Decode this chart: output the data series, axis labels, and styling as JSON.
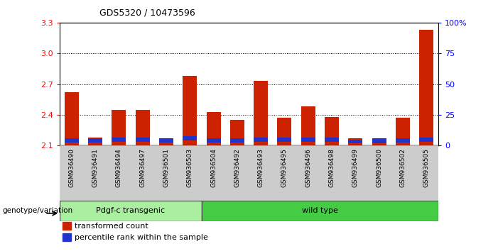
{
  "title": "GDS5320 / 10473596",
  "samples": [
    "GSM936490",
    "GSM936491",
    "GSM936494",
    "GSM936497",
    "GSM936501",
    "GSM936503",
    "GSM936504",
    "GSM936492",
    "GSM936493",
    "GSM936495",
    "GSM936496",
    "GSM936498",
    "GSM936499",
    "GSM936500",
    "GSM936502",
    "GSM936505"
  ],
  "red_values": [
    2.62,
    2.18,
    2.45,
    2.45,
    2.17,
    2.78,
    2.43,
    2.35,
    2.73,
    2.37,
    2.48,
    2.38,
    2.17,
    2.12,
    2.37,
    3.23
  ],
  "blue_bottom": [
    2.13,
    2.13,
    2.14,
    2.14,
    2.13,
    2.15,
    2.13,
    2.13,
    2.14,
    2.14,
    2.14,
    2.14,
    2.12,
    2.12,
    2.13,
    2.14
  ],
  "blue_height": [
    0.04,
    0.04,
    0.04,
    0.04,
    0.04,
    0.04,
    0.04,
    0.04,
    0.04,
    0.04,
    0.04,
    0.04,
    0.04,
    0.05,
    0.04,
    0.04
  ],
  "ymin": 2.1,
  "ymax": 3.3,
  "yticks": [
    2.1,
    2.4,
    2.7,
    3.0,
    3.3
  ],
  "right_yticks_vals": [
    0,
    25,
    50,
    75,
    100
  ],
  "right_yticks_labels": [
    "0",
    "25",
    "50",
    "75",
    "100%"
  ],
  "group1_label": "Pdgf-c transgenic",
  "group1_count": 6,
  "group2_label": "wild type",
  "group2_count": 10,
  "genotype_label": "genotype/variation",
  "legend_red": "transformed count",
  "legend_blue": "percentile rank within the sample",
  "bar_color_red": "#cc2200",
  "bar_color_blue": "#2233cc",
  "group1_color": "#aaeea0",
  "group2_color": "#44cc44",
  "xtick_bg": "#cccccc",
  "base": 2.1,
  "bar_width": 0.6
}
